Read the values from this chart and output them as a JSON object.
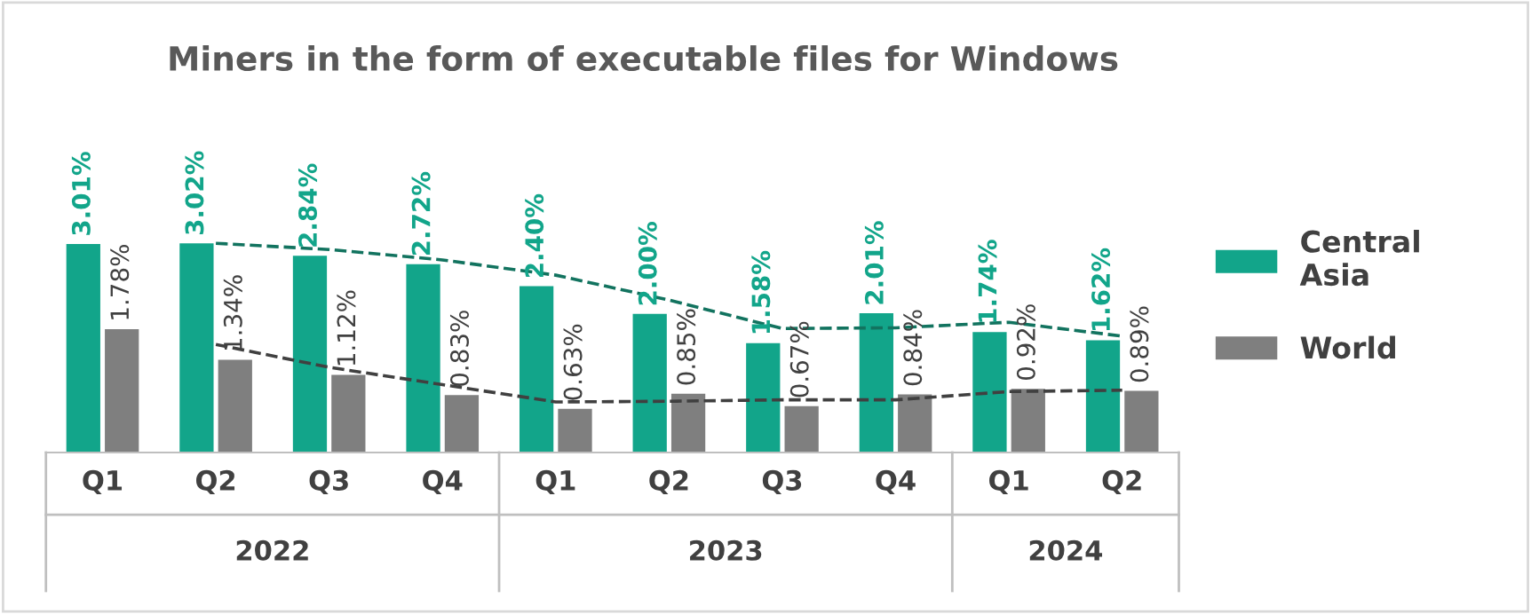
{
  "chart_data": {
    "type": "bar",
    "title": "Miners in the form of executable files for Windows",
    "categories": [
      "Q1",
      "Q2",
      "Q3",
      "Q4",
      "Q1",
      "Q2",
      "Q3",
      "Q4",
      "Q1",
      "Q2"
    ],
    "annotations": [
      "2022",
      "2023",
      "2024"
    ],
    "legend": "right",
    "series": [
      {
        "name": "Central Asia",
        "color": "#12a58a",
        "values": [
          3.01,
          3.02,
          2.84,
          2.72,
          2.4,
          2.0,
          1.58,
          2.01,
          1.74,
          1.62
        ],
        "value_labels": [
          "3.01%",
          "3.02%",
          "2.84%",
          "2.72%",
          "2.40%",
          "2.00%",
          "1.58%",
          "2.01%",
          "1.74%",
          "1.62%"
        ]
      },
      {
        "name": "World",
        "color": "#7f7f7f",
        "values": [
          1.78,
          1.34,
          1.12,
          0.83,
          0.63,
          0.85,
          0.67,
          0.84,
          0.92,
          0.89
        ],
        "value_labels": [
          "1.78%",
          "1.34%",
          "1.12%",
          "0.83%",
          "0.63%",
          "0.85%",
          "0.67%",
          "0.84%",
          "0.92%",
          "0.89%"
        ]
      },
      {
        "type": "line",
        "color": "#12735f",
        "line_style": "dashed",
        "values": [
          null,
          3.02,
          2.93,
          2.78,
          2.56,
          2.2,
          1.79,
          1.8,
          1.88,
          1.68
        ]
      },
      {
        "type": "line",
        "color": "#404040",
        "line_style": "dashed",
        "values": [
          null,
          1.56,
          1.23,
          0.98,
          0.73,
          0.74,
          0.76,
          0.76,
          0.88,
          0.9
        ]
      }
    ]
  }
}
